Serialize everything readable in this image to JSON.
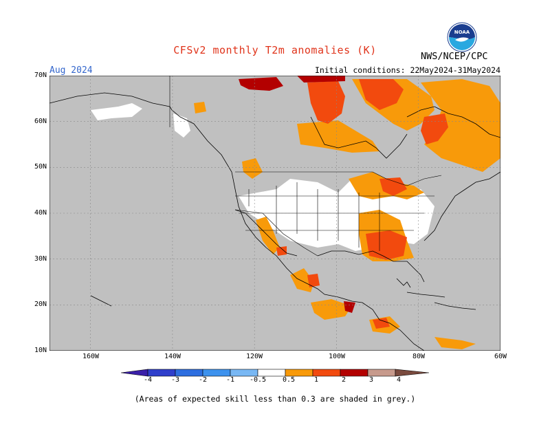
{
  "title": "CFSv2 monthly T2m anomalies (K)",
  "month": "Aug 2024",
  "initial_conditions": "Initial conditions: 22May2024-31May2024",
  "agency": "NWS/NCEP/CPC",
  "logo_text": "NOAA",
  "footnote": "(Areas of expected skill less than 0.3 are shaded in grey.)",
  "lat_labels": [
    "70N",
    "60N",
    "50N",
    "40N",
    "30N",
    "20N",
    "10N"
  ],
  "lon_labels": [
    "160W",
    "140W",
    "120W",
    "100W",
    "80W",
    "60W"
  ],
  "colorbar": {
    "labels": [
      "-4",
      "-3",
      "-2",
      "-1",
      "-0.5",
      "0.5",
      "1",
      "2",
      "3",
      "4"
    ],
    "colors": [
      "#3a1fa8",
      "#2f3fcb",
      "#2d6ee0",
      "#3d92ee",
      "#79b8f4",
      "#ffffff",
      "#f89a0a",
      "#f24a0e",
      "#b30000",
      "#c79a8c",
      "#7a4a3e"
    ]
  },
  "colors": {
    "background": "#c0c0c0",
    "land_no_anomaly": "#ffffff",
    "orange": "#f89a0a",
    "red": "#f24a0e",
    "dark_red": "#b30000",
    "title": "#e0331a",
    "month": "#3366cc"
  },
  "map": {
    "lon_range": [
      -170,
      -60
    ],
    "lat_range": [
      10,
      70
    ],
    "projection": "cylindrical equidistant"
  }
}
